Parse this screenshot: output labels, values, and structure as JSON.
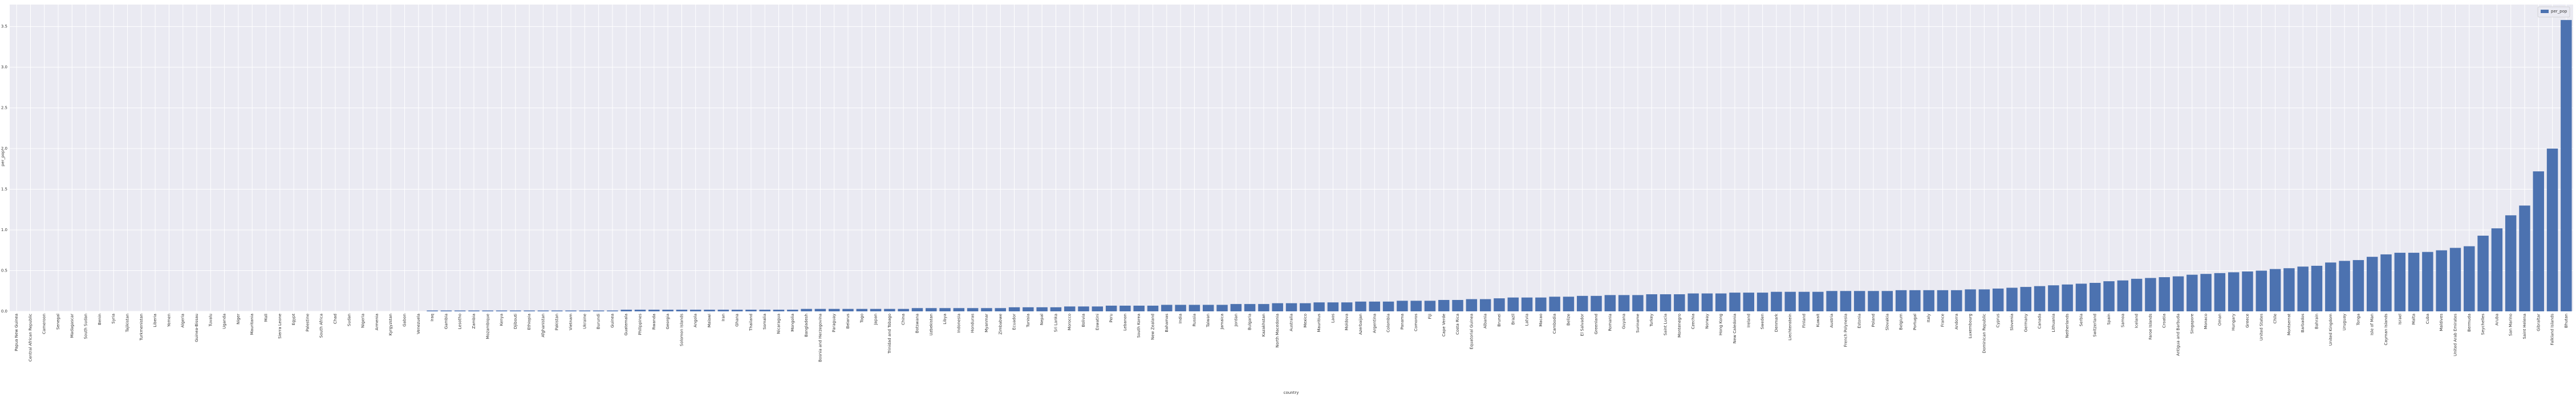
{
  "chart_data": {
    "type": "bar",
    "x_label": "country",
    "y_label": "per_pop",
    "categories": [
      "Papua New Guinea",
      "Central African Republic",
      "Cameroon",
      "Senegal",
      "Madagascar",
      "South Sudan",
      "Benin",
      "Syria",
      "Tajikistan",
      "Turkmenistan",
      "Liberia",
      "Yemen",
      "Algeria",
      "Guinea-Bissau",
      "Tuvalu",
      "Uganda",
      "Niger",
      "Mauritania",
      "Mali",
      "Sierra Leone",
      "Egypt",
      "Palestine",
      "South Africa",
      "Chad",
      "Sudan",
      "Nigeria",
      "Armenia",
      "Kyrgyzstan",
      "Gabon",
      "Venezuela",
      "Iraq",
      "Gambia",
      "Lesotho",
      "Zambia",
      "Mozambique",
      "Kenya",
      "Djibouti",
      "Ethiopia",
      "Afghanistan",
      "Pakistan",
      "Vietnam",
      "Ukraine",
      "Burundi",
      "Guinea",
      "Guatemala",
      "Philippines",
      "Rwanda",
      "Georgia",
      "Solomon Islands",
      "Angola",
      "Malawi",
      "Iran",
      "Ghana",
      "Thailand",
      "Somalia",
      "Nicaragua",
      "Mongolia",
      "Bangladesh",
      "Bosnia and Herzegovina",
      "Paraguay",
      "Belarus",
      "Togo",
      "Japan",
      "Trinidad and Tobago",
      "China",
      "Botswana",
      "Uzbekistan",
      "Libya",
      "Indonesia",
      "Honduras",
      "Myanmar",
      "Zimbabwe",
      "Ecuador",
      "Tunisia",
      "Nepal",
      "Sri Lanka",
      "Morocco",
      "Bolivia",
      "Eswatini",
      "Peru",
      "Lebanon",
      "South Korea",
      "New Zealand",
      "Bahamas",
      "India",
      "Russia",
      "Taiwan",
      "Jamaica",
      "Jordan",
      "Bulgaria",
      "Kazakhstan",
      "North Macedonia",
      "Australia",
      "Mexico",
      "Mauritius",
      "Laos",
      "Moldova",
      "Azerbaijan",
      "Argentina",
      "Colombia",
      "Panama",
      "Comoros",
      "Fiji",
      "Cape Verde",
      "Costa Rica",
      "Equatorial Guinea",
      "Albania",
      "Brunei",
      "Brazil",
      "Latvia",
      "Macao",
      "Cambodia",
      "Belize",
      "El Salvador",
      "Greenland",
      "Romania",
      "Guyana",
      "Suriname",
      "Turkey",
      "Saint Lucia",
      "Montenegro",
      "Czechia",
      "Norway",
      "Hong Kong",
      "New Caledonia",
      "Ireland",
      "Sweden",
      "Denmark",
      "Liechtenstein",
      "Finland",
      "Kuwait",
      "Austria",
      "French Polynesia",
      "Estonia",
      "Poland",
      "Slovakia",
      "Belgium",
      "Portugal",
      "Italy",
      "France",
      "Andorra",
      "Luxembourg",
      "Dominican Republic",
      "Cyprus",
      "Slovenia",
      "Germany",
      "Canada",
      "Lithuania",
      "Netherlands",
      "Serbia",
      "Switzerland",
      "Spain",
      "Samoa",
      "Iceland",
      "Faroe Islands",
      "Croatia",
      "Antigua and Barbuda",
      "Singapore",
      "Monaco",
      "Oman",
      "Hungary",
      "Greece",
      "United States",
      "Chile",
      "Montserrat",
      "Barbados",
      "Bahrain",
      "United Kingdom",
      "Uruguay",
      "Tonga",
      "Isle of Man",
      "Cayman Islands",
      "Israel",
      "Malta",
      "Cuba",
      "Maldives",
      "United Arab Emirates",
      "Bermuda",
      "Seychelles",
      "Aruba",
      "San Marino",
      "Saint Helena",
      "Gibraltar",
      "Falkland Islands",
      "Bhutan"
    ],
    "series": [
      {
        "name": "per_pop",
        "color": "#4c72b0",
        "values": [
          0,
          0,
          0,
          0,
          0,
          0,
          0,
          0,
          0,
          0,
          0,
          0,
          0,
          0,
          0,
          0,
          0,
          0,
          0,
          0,
          0,
          0,
          0,
          0,
          0,
          0,
          0,
          0,
          0,
          0,
          0.01,
          0.01,
          0.01,
          0.01,
          0.01,
          0.01,
          0.01,
          0.01,
          0.01,
          0.01,
          0.01,
          0.01,
          0.01,
          0.01,
          0.02,
          0.02,
          0.02,
          0.02,
          0.02,
          0.02,
          0.02,
          0.02,
          0.02,
          0.02,
          0.02,
          0.02,
          0.02,
          0.03,
          0.03,
          0.03,
          0.03,
          0.03,
          0.03,
          0.03,
          0.03,
          0.04,
          0.04,
          0.04,
          0.04,
          0.04,
          0.04,
          0.04,
          0.05,
          0.05,
          0.05,
          0.05,
          0.06,
          0.06,
          0.06,
          0.07,
          0.07,
          0.07,
          0.07,
          0.08,
          0.08,
          0.08,
          0.08,
          0.08,
          0.09,
          0.09,
          0.09,
          0.1,
          0.1,
          0.1,
          0.11,
          0.11,
          0.11,
          0.12,
          0.12,
          0.12,
          0.13,
          0.13,
          0.13,
          0.14,
          0.14,
          0.15,
          0.15,
          0.16,
          0.17,
          0.17,
          0.17,
          0.18,
          0.18,
          0.19,
          0.19,
          0.2,
          0.2,
          0.2,
          0.21,
          0.21,
          0.21,
          0.22,
          0.22,
          0.22,
          0.23,
          0.23,
          0.23,
          0.24,
          0.24,
          0.24,
          0.24,
          0.25,
          0.25,
          0.25,
          0.25,
          0.25,
          0.26,
          0.26,
          0.26,
          0.26,
          0.26,
          0.27,
          0.27,
          0.28,
          0.29,
          0.3,
          0.31,
          0.32,
          0.33,
          0.34,
          0.35,
          0.37,
          0.38,
          0.4,
          0.41,
          0.42,
          0.43,
          0.45,
          0.46,
          0.47,
          0.48,
          0.49,
          0.5,
          0.52,
          0.53,
          0.55,
          0.56,
          0.6,
          0.62,
          0.63,
          0.67,
          0.7,
          0.72,
          0.72,
          0.73,
          0.75,
          0.78,
          0.8,
          0.93,
          1.02,
          1.18,
          1.3,
          1.72,
          2.0,
          3.58
        ]
      }
    ],
    "ylim": [
      0,
      3.77
    ],
    "yticks": [
      {
        "value": 0,
        "label": "0.0"
      },
      {
        "value": 0.5,
        "label": "0.5"
      },
      {
        "value": 1,
        "label": "1.0"
      },
      {
        "value": 1.5,
        "label": "1.5"
      },
      {
        "value": 2,
        "label": "2.0"
      },
      {
        "value": 2.5,
        "label": "2.5"
      },
      {
        "value": 3,
        "label": "3.0"
      },
      {
        "value": 3.5,
        "label": "3.5"
      }
    ],
    "grid": true,
    "legend": "upper right"
  }
}
